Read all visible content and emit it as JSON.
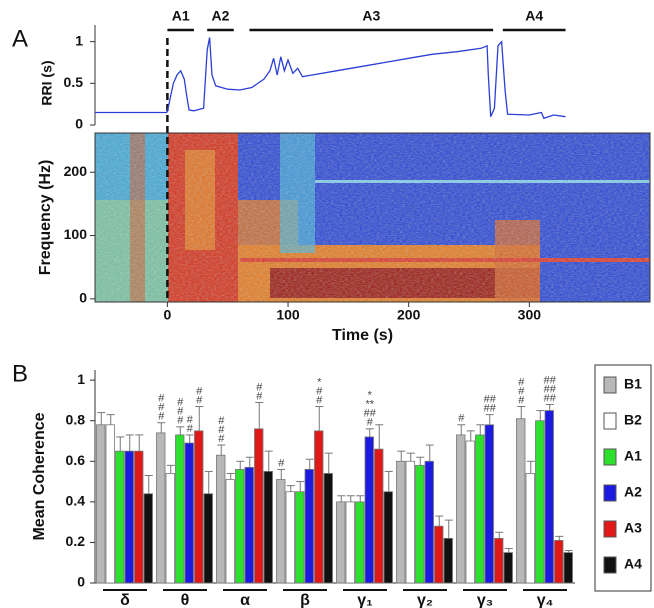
{
  "panel_labels": [
    "A",
    "B"
  ],
  "chart_data": [
    {
      "type": "line",
      "y_label": "RRI (s)",
      "color": "#2b3fd6",
      "xlim": [
        -60,
        400
      ],
      "ylim": [
        0,
        1.2
      ],
      "yticks": [
        0,
        0.5,
        1
      ],
      "event_x": 0,
      "periods": [
        {
          "label": "A1",
          "start": 0,
          "end": 22
        },
        {
          "label": "A2",
          "start": 33,
          "end": 55
        },
        {
          "label": "A3",
          "start": 68,
          "end": 270
        },
        {
          "label": "A4",
          "start": 278,
          "end": 330
        }
      ],
      "x": [
        -60,
        -1,
        0,
        2,
        5,
        8,
        11,
        14,
        16,
        18,
        22,
        30,
        33,
        35,
        37,
        40,
        50,
        60,
        70,
        80,
        85,
        88,
        91,
        94,
        97,
        100,
        104,
        108,
        112,
        120,
        140,
        160,
        180,
        200,
        220,
        240,
        260,
        265,
        266,
        268,
        271,
        274,
        277,
        280,
        282,
        300,
        310,
        312,
        320,
        330
      ],
      "values": [
        0.15,
        0.15,
        0.16,
        0.3,
        0.5,
        0.6,
        0.65,
        0.55,
        0.35,
        0.18,
        0.17,
        0.2,
        0.9,
        1.05,
        0.6,
        0.47,
        0.43,
        0.42,
        0.45,
        0.55,
        0.65,
        0.8,
        0.6,
        0.82,
        0.65,
        0.78,
        0.62,
        0.68,
        0.58,
        0.6,
        0.65,
        0.7,
        0.75,
        0.8,
        0.85,
        0.88,
        0.92,
        0.95,
        0.6,
        0.1,
        0.2,
        0.95,
        1.0,
        0.4,
        0.13,
        0.12,
        0.15,
        0.08,
        0.12,
        0.1
      ]
    },
    {
      "type": "spectrogram",
      "x_label": "Time (s)",
      "y_label": "Frequency (Hz)",
      "xlim": [
        -60,
        400
      ],
      "ylim": [
        -5,
        262
      ],
      "xticks": [
        0,
        100,
        200,
        300
      ],
      "yticks": [
        0,
        100,
        200
      ]
    },
    {
      "type": "bar",
      "y_label": "Mean Coherence",
      "ylim": [
        0,
        1.05
      ],
      "yticks": [
        0,
        0.2,
        0.4,
        0.6,
        0.8,
        1
      ],
      "legend": "right",
      "categories": [
        "δ",
        "θ",
        "α",
        "β",
        "γ₁",
        "γ₂",
        "γ₃",
        "γ₄"
      ],
      "series": [
        {
          "name": "B1",
          "color": "#b8b8b8",
          "values": [
            0.78,
            0.74,
            0.63,
            0.51,
            0.4,
            0.6,
            0.73,
            0.81
          ],
          "errors": [
            0.06,
            0.05,
            0.05,
            0.05,
            0.03,
            0.05,
            0.05,
            0.06
          ]
        },
        {
          "name": "B2",
          "color": "#ffffff",
          "values": [
            0.78,
            0.54,
            0.51,
            0.45,
            0.4,
            0.6,
            0.7,
            0.54
          ],
          "errors": [
            0.05,
            0.04,
            0.03,
            0.03,
            0.03,
            0.04,
            0.05,
            0.06
          ]
        },
        {
          "name": "A1",
          "color": "#2ee02e",
          "values": [
            0.65,
            0.73,
            0.56,
            0.45,
            0.4,
            0.58,
            0.73,
            0.8
          ],
          "errors": [
            0.07,
            0.04,
            0.04,
            0.05,
            0.03,
            0.04,
            0.05,
            0.05
          ]
        },
        {
          "name": "A2",
          "color": "#1a1ae0",
          "values": [
            0.65,
            0.69,
            0.57,
            0.56,
            0.72,
            0.6,
            0.78,
            0.85
          ],
          "errors": [
            0.08,
            0.04,
            0.05,
            0.05,
            0.04,
            0.08,
            0.05,
            0.03
          ]
        },
        {
          "name": "A3",
          "color": "#e01818",
          "values": [
            0.65,
            0.75,
            0.76,
            0.75,
            0.66,
            0.28,
            0.22,
            0.21
          ],
          "errors": [
            0.08,
            0.12,
            0.13,
            0.12,
            0.12,
            0.05,
            0.03,
            0.02
          ]
        },
        {
          "name": "A4",
          "color": "#111111",
          "values": [
            0.44,
            0.44,
            0.55,
            0.54,
            0.45,
            0.22,
            0.15,
            0.15
          ],
          "errors": [
            0.09,
            0.11,
            0.1,
            0.1,
            0.1,
            0.09,
            0.02,
            0.01
          ]
        }
      ],
      "annotations": [
        {
          "group": 1,
          "series": 0,
          "lines": [
            "#",
            "#",
            "#"
          ]
        },
        {
          "group": 1,
          "series": 2,
          "lines": [
            "#",
            "#",
            "#"
          ]
        },
        {
          "group": 1,
          "series": 3,
          "lines": [
            "#",
            "#"
          ]
        },
        {
          "group": 1,
          "series": 4,
          "lines": [
            "#",
            "#"
          ]
        },
        {
          "group": 2,
          "series": 0,
          "lines": [
            "#",
            "#",
            "#"
          ]
        },
        {
          "group": 2,
          "series": 4,
          "lines": [
            "#",
            "#"
          ]
        },
        {
          "group": 3,
          "series": 0,
          "lines": [
            "#"
          ]
        },
        {
          "group": 3,
          "series": 4,
          "lines": [
            "*",
            "#",
            "#"
          ]
        },
        {
          "group": 4,
          "series": 3,
          "lines": [
            "*",
            "**",
            "##",
            "#"
          ]
        },
        {
          "group": 6,
          "series": 0,
          "lines": [
            "#"
          ]
        },
        {
          "group": 6,
          "series": 3,
          "lines": [
            "##",
            "##"
          ]
        },
        {
          "group": 7,
          "series": 0,
          "lines": [
            "#",
            "#",
            "#"
          ]
        },
        {
          "group": 7,
          "series": 3,
          "lines": [
            "##",
            "##",
            "##"
          ]
        }
      ]
    }
  ]
}
